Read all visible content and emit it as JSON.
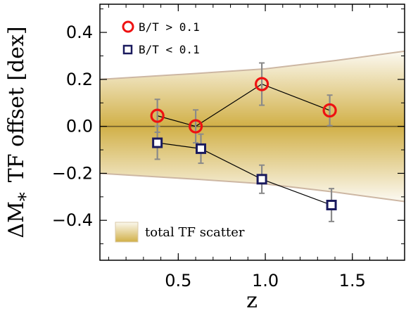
{
  "chart_data": {
    "type": "scatter",
    "xlabel": "z",
    "ylabel_symbol": "ΔM",
    "ylabel_sub": "*",
    "ylabel_text": "TF offset [dex]",
    "xlim": [
      0.05,
      1.8
    ],
    "ylim": [
      -0.57,
      0.52
    ],
    "x_ticks": [
      {
        "value": 0.5,
        "label": "0.5"
      },
      {
        "value": 1.0,
        "label": "1.0"
      },
      {
        "value": 1.5,
        "label": "1.5"
      }
    ],
    "y_ticks": [
      {
        "value": 0.4,
        "label": "0.4"
      },
      {
        "value": 0.2,
        "label": "0.2"
      },
      {
        "value": 0.0,
        "label": "0.0"
      },
      {
        "value": -0.2,
        "label": "−0.2"
      },
      {
        "value": -0.4,
        "label": "−0.4"
      }
    ],
    "reference_line": 0.0,
    "scatter_band": {
      "label": "total TF scatter",
      "x": [
        0.05,
        0.6,
        1.0,
        1.4,
        1.8
      ],
      "upper": [
        0.2,
        0.225,
        0.245,
        0.28,
        0.32
      ],
      "lower": [
        -0.2,
        -0.225,
        -0.245,
        -0.28,
        -0.32
      ],
      "color": "#c9a227"
    },
    "series": [
      {
        "name": "B/T > 0.1",
        "marker": "circle",
        "color": "#ee1111",
        "x": [
          0.38,
          0.6,
          0.98,
          1.37
        ],
        "y": [
          0.045,
          0.0,
          0.18,
          0.068
        ],
        "yerr": [
          0.07,
          0.07,
          0.09,
          0.065
        ]
      },
      {
        "name": "B/T < 0.1",
        "marker": "square",
        "color": "#1a1a5e",
        "x": [
          0.38,
          0.63,
          0.98,
          1.38
        ],
        "y": [
          -0.07,
          -0.095,
          -0.225,
          -0.335
        ],
        "yerr": [
          0.07,
          0.062,
          0.06,
          0.07
        ]
      }
    ],
    "legend_position": "top-left",
    "grid": false
  }
}
